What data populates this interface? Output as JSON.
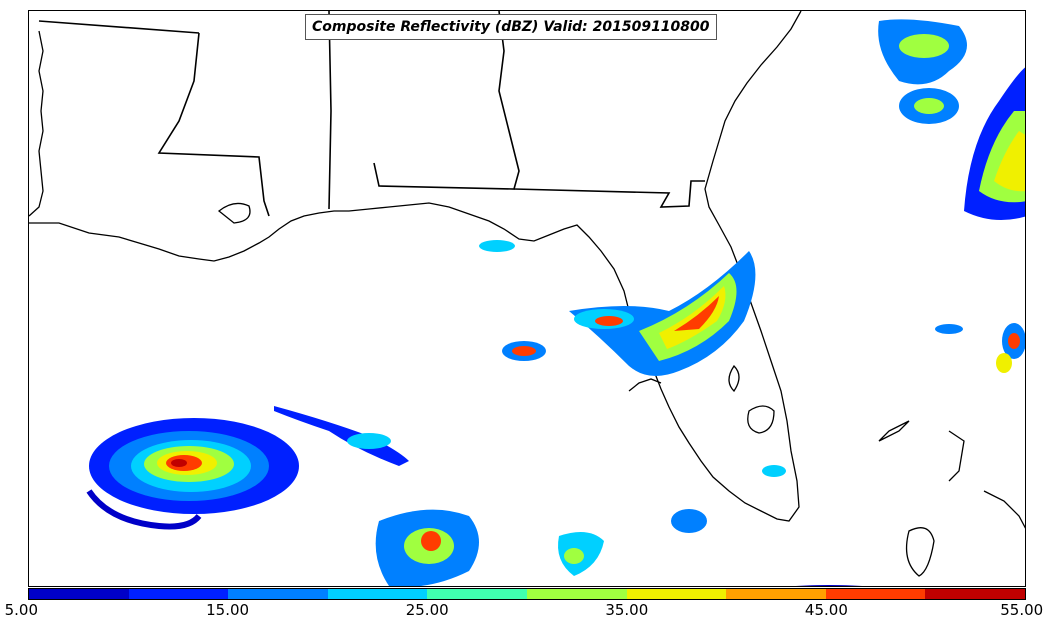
{
  "title": "Composite Reflectivity (dBZ) Valid: 201509110800",
  "colorbar": {
    "ticks": [
      "5.00",
      "15.00",
      "25.00",
      "35.00",
      "45.00",
      "55.00"
    ],
    "colors": [
      "#0000c8",
      "#0020ff",
      "#0080ff",
      "#00d0ff",
      "#40ffb0",
      "#a0ff40",
      "#f0f000",
      "#ffa000",
      "#ff3c00",
      "#c00000"
    ]
  }
}
